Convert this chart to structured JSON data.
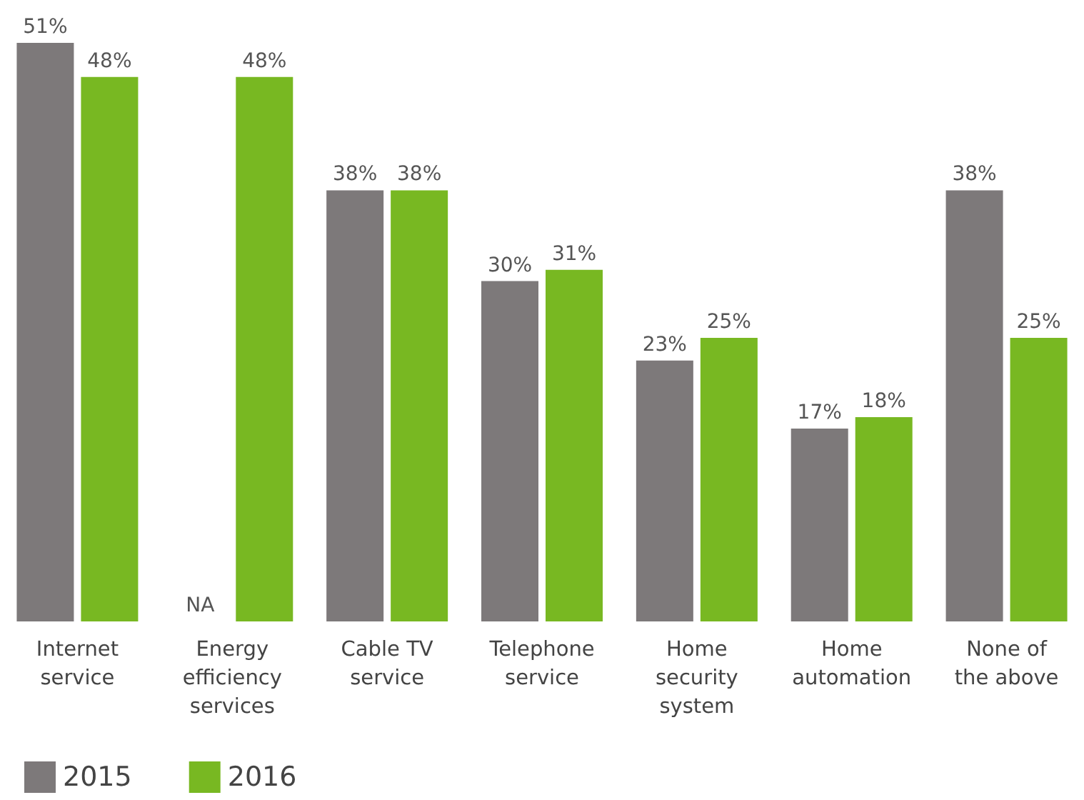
{
  "chart_data": {
    "type": "bar",
    "categories": [
      "Internet\nservice",
      "Energy\nefficiency\nservices",
      "Cable TV\nservice",
      "Telephone\nservice",
      "Home\nsecurity\nsystem",
      "Home\nautomation",
      "None of\nthe above"
    ],
    "series": [
      {
        "name": "2015",
        "color": "#7d797a",
        "values": [
          51,
          null,
          38,
          30,
          23,
          17,
          38
        ],
        "value_labels": [
          "51%",
          "NA",
          "38%",
          "30%",
          "23%",
          "17%",
          "38%"
        ]
      },
      {
        "name": "2016",
        "color": "#78b822",
        "values": [
          48,
          48,
          38,
          31,
          25,
          18,
          25
        ],
        "value_labels": [
          "48%",
          "48%",
          "38%",
          "31%",
          "25%",
          "18%",
          "25%"
        ]
      }
    ],
    "legend": "bottom left",
    "grid": false
  }
}
